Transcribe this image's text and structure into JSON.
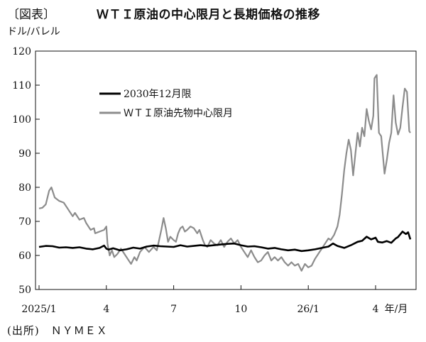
{
  "figure_label": "〔図表〕",
  "source": "(出所)　ＮＹＭＥＸ",
  "chart_data": {
    "type": "line",
    "title": "ＷＴＩ原油の中心限月と長期価格の推移",
    "ylabel": "ドル/バレル",
    "xlabel": "年/月",
    "ylim": [
      50,
      120
    ],
    "yticks": [
      50,
      60,
      70,
      80,
      90,
      100,
      110,
      120
    ],
    "xlim": [
      0,
      15.7
    ],
    "xticks": [
      {
        "x": 0,
        "label": "2025/1"
      },
      {
        "x": 3,
        "label": "4"
      },
      {
        "x": 6,
        "label": "7"
      },
      {
        "x": 9,
        "label": "10"
      },
      {
        "x": 12,
        "label": "26/1"
      },
      {
        "x": 15,
        "label": "4"
      }
    ],
    "grid": false,
    "legend_position": "top-left",
    "series": [
      {
        "name": "2030年12月限",
        "color": "#000000",
        "points": [
          [
            0.0,
            62.5
          ],
          [
            0.3,
            62.8
          ],
          [
            0.6,
            62.7
          ],
          [
            0.9,
            62.3
          ],
          [
            1.2,
            62.4
          ],
          [
            1.5,
            62.2
          ],
          [
            1.8,
            62.4
          ],
          [
            2.1,
            62.0
          ],
          [
            2.4,
            61.8
          ],
          [
            2.7,
            62.2
          ],
          [
            2.9,
            62.9
          ],
          [
            3.0,
            62.0
          ],
          [
            3.1,
            61.7
          ],
          [
            3.3,
            62.1
          ],
          [
            3.6,
            61.5
          ],
          [
            3.9,
            61.8
          ],
          [
            4.2,
            62.3
          ],
          [
            4.5,
            62.0
          ],
          [
            4.8,
            62.6
          ],
          [
            5.1,
            62.9
          ],
          [
            5.4,
            62.7
          ],
          [
            5.7,
            62.6
          ],
          [
            6.0,
            62.5
          ],
          [
            6.3,
            63.0
          ],
          [
            6.6,
            62.6
          ],
          [
            6.9,
            62.8
          ],
          [
            7.2,
            63.0
          ],
          [
            7.5,
            62.8
          ],
          [
            7.8,
            63.0
          ],
          [
            8.1,
            63.2
          ],
          [
            8.4,
            63.4
          ],
          [
            8.7,
            63.5
          ],
          [
            9.0,
            63.0
          ],
          [
            9.3,
            62.6
          ],
          [
            9.6,
            62.7
          ],
          [
            9.9,
            62.4
          ],
          [
            10.2,
            62.0
          ],
          [
            10.5,
            62.2
          ],
          [
            10.8,
            61.8
          ],
          [
            11.1,
            61.5
          ],
          [
            11.4,
            61.7
          ],
          [
            11.7,
            61.3
          ],
          [
            12.0,
            61.5
          ],
          [
            12.3,
            61.8
          ],
          [
            12.6,
            62.2
          ],
          [
            12.9,
            62.6
          ],
          [
            13.1,
            63.5
          ],
          [
            13.3,
            62.8
          ],
          [
            13.6,
            62.2
          ],
          [
            13.9,
            63.0
          ],
          [
            14.2,
            64.0
          ],
          [
            14.4,
            64.3
          ],
          [
            14.6,
            65.5
          ],
          [
            14.8,
            64.7
          ],
          [
            15.0,
            65.2
          ],
          [
            15.1,
            64.0
          ],
          [
            15.3,
            63.8
          ],
          [
            15.5,
            64.2
          ],
          [
            15.7,
            63.7
          ],
          [
            15.9,
            65.0
          ],
          [
            16.0,
            65.4
          ],
          [
            16.2,
            67.0
          ],
          [
            16.35,
            66.3
          ],
          [
            16.45,
            66.8
          ],
          [
            16.55,
            64.7
          ]
        ]
      },
      {
        "name": "ＷＴＩ原油先物中心限月",
        "color": "#8c8c8c",
        "points": [
          [
            0.0,
            73.8
          ],
          [
            0.15,
            74.0
          ],
          [
            0.3,
            75.0
          ],
          [
            0.45,
            79.0
          ],
          [
            0.55,
            80.0
          ],
          [
            0.7,
            77.0
          ],
          [
            0.9,
            76.0
          ],
          [
            1.1,
            75.5
          ],
          [
            1.3,
            73.5
          ],
          [
            1.5,
            71.5
          ],
          [
            1.6,
            72.5
          ],
          [
            1.8,
            70.5
          ],
          [
            2.0,
            71.0
          ],
          [
            2.1,
            69.5
          ],
          [
            2.3,
            67.5
          ],
          [
            2.45,
            68.0
          ],
          [
            2.5,
            66.5
          ],
          [
            2.7,
            67.0
          ],
          [
            2.9,
            67.5
          ],
          [
            3.0,
            68.5
          ],
          [
            3.05,
            63.5
          ],
          [
            3.15,
            60.0
          ],
          [
            3.25,
            61.5
          ],
          [
            3.35,
            59.5
          ],
          [
            3.5,
            60.5
          ],
          [
            3.65,
            62.0
          ],
          [
            3.8,
            60.5
          ],
          [
            3.95,
            59.0
          ],
          [
            4.1,
            57.5
          ],
          [
            4.25,
            59.5
          ],
          [
            4.35,
            58.5
          ],
          [
            4.5,
            61.0
          ],
          [
            4.7,
            62.5
          ],
          [
            4.9,
            61.0
          ],
          [
            5.1,
            62.5
          ],
          [
            5.25,
            61.5
          ],
          [
            5.35,
            64.5
          ],
          [
            5.45,
            67.5
          ],
          [
            5.55,
            71.0
          ],
          [
            5.65,
            68.0
          ],
          [
            5.75,
            64.0
          ],
          [
            5.85,
            65.5
          ],
          [
            6.0,
            64.5
          ],
          [
            6.1,
            64.0
          ],
          [
            6.2,
            66.5
          ],
          [
            6.3,
            68.0
          ],
          [
            6.4,
            68.5
          ],
          [
            6.5,
            67.0
          ],
          [
            6.6,
            67.5
          ],
          [
            6.75,
            68.5
          ],
          [
            6.9,
            68.0
          ],
          [
            7.05,
            66.5
          ],
          [
            7.15,
            67.5
          ],
          [
            7.3,
            64.5
          ],
          [
            7.4,
            63.0
          ],
          [
            7.5,
            62.5
          ],
          [
            7.65,
            64.5
          ],
          [
            7.8,
            63.5
          ],
          [
            7.95,
            63.0
          ],
          [
            8.1,
            64.5
          ],
          [
            8.25,
            62.5
          ],
          [
            8.4,
            64.0
          ],
          [
            8.55,
            65.0
          ],
          [
            8.7,
            63.5
          ],
          [
            8.85,
            64.5
          ],
          [
            9.0,
            62.5
          ],
          [
            9.15,
            61.0
          ],
          [
            9.3,
            59.5
          ],
          [
            9.45,
            61.5
          ],
          [
            9.6,
            59.5
          ],
          [
            9.75,
            58.0
          ],
          [
            9.9,
            58.5
          ],
          [
            10.05,
            60.0
          ],
          [
            10.2,
            61.0
          ],
          [
            10.35,
            58.5
          ],
          [
            10.5,
            59.5
          ],
          [
            10.65,
            58.5
          ],
          [
            10.8,
            59.5
          ],
          [
            10.95,
            58.0
          ],
          [
            11.1,
            57.0
          ],
          [
            11.25,
            58.0
          ],
          [
            11.4,
            57.0
          ],
          [
            11.55,
            57.5
          ],
          [
            11.7,
            55.5
          ],
          [
            11.85,
            57.5
          ],
          [
            12.0,
            56.5
          ],
          [
            12.15,
            57.0
          ],
          [
            12.3,
            59.0
          ],
          [
            12.45,
            60.5
          ],
          [
            12.6,
            62.0
          ],
          [
            12.75,
            63.5
          ],
          [
            12.9,
            65.0
          ],
          [
            13.0,
            64.5
          ],
          [
            13.15,
            66.0
          ],
          [
            13.3,
            68.5
          ],
          [
            13.4,
            72.0
          ],
          [
            13.5,
            78.0
          ],
          [
            13.6,
            85.0
          ],
          [
            13.7,
            90.0
          ],
          [
            13.8,
            94.0
          ],
          [
            13.9,
            91.0
          ],
          [
            14.0,
            83.5
          ],
          [
            14.1,
            90.0
          ],
          [
            14.2,
            96.0
          ],
          [
            14.3,
            92.0
          ],
          [
            14.4,
            97.5
          ],
          [
            14.5,
            95.0
          ],
          [
            14.6,
            103.0
          ],
          [
            14.7,
            99.5
          ],
          [
            14.8,
            97.0
          ],
          [
            14.9,
            101.0
          ],
          [
            14.95,
            112.0
          ],
          [
            15.05,
            113.0
          ],
          [
            15.15,
            96.0
          ],
          [
            15.25,
            95.0
          ],
          [
            15.4,
            84.0
          ],
          [
            15.5,
            88.0
          ],
          [
            15.6,
            93.0
          ],
          [
            15.7,
            96.0
          ],
          [
            15.8,
            107.0
          ],
          [
            15.9,
            99.0
          ],
          [
            16.0,
            95.5
          ],
          [
            16.1,
            97.5
          ],
          [
            16.2,
            103.5
          ],
          [
            16.3,
            109.0
          ],
          [
            16.4,
            108.0
          ],
          [
            16.5,
            96.5
          ],
          [
            16.55,
            96.0
          ]
        ]
      }
    ]
  }
}
